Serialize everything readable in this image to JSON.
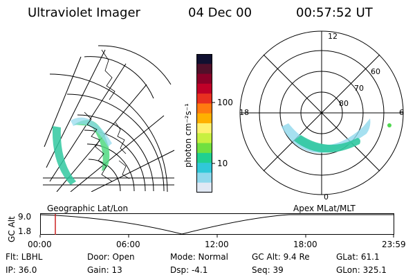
{
  "header": {
    "title": "Ultraviolet Imager",
    "date": "04 Dec 00",
    "time": "00:57:52 UT"
  },
  "colorbar": {
    "label": "photon cm⁻²s⁻¹",
    "ticks": [
      "100",
      "10"
    ],
    "colors": [
      "#101030",
      "#50102a",
      "#8a0028",
      "#c00028",
      "#e83020",
      "#ff7a10",
      "#ffb000",
      "#fff070",
      "#c8f040",
      "#70e040",
      "#20d090",
      "#30c8d8",
      "#90d8ec",
      "#e0e8f4"
    ]
  },
  "polar": {
    "labels": {
      "top": "12",
      "left": "18",
      "right": "6",
      "bottom": "0"
    },
    "lat_labels": [
      "60",
      "70",
      "80"
    ],
    "aurora_color": "#30c8a0"
  },
  "timeline": {
    "left_label": "Geographic Lat/Lon",
    "right_label": "Apex MLat/MLT",
    "axis_label": "GC Alt",
    "y_ticks": [
      "9.0",
      "1.8"
    ],
    "x_ticks": [
      "00:00",
      "06:00",
      "12:00",
      "18:00",
      "23:59"
    ],
    "marker_color": "#cc2020"
  },
  "info": {
    "flt": "Flt: LBHL",
    "ip": "IP: 36.0",
    "door": "Door: Open",
    "gain": "Gain: 13",
    "mode": "Mode: Normal",
    "dsp": "Dsp:    -4.1",
    "gcalt": "GC Alt: 9.4 Re",
    "seq": "Seq: 39",
    "glat": "GLat:  61.1",
    "glon": "GLon: 325.1"
  }
}
